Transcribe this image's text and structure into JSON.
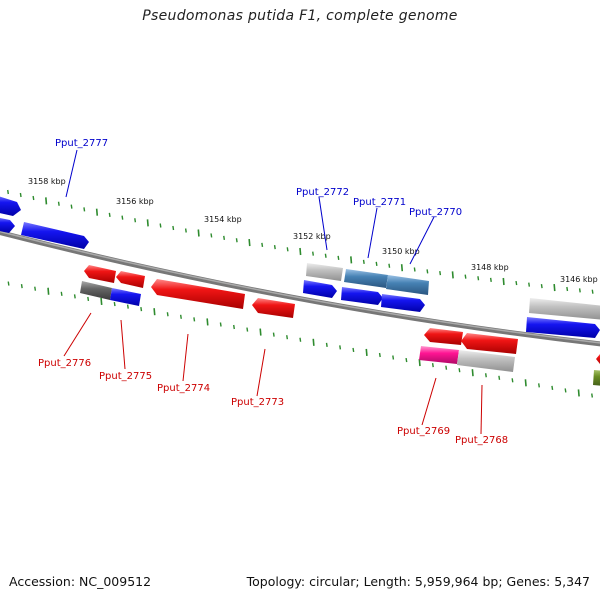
{
  "title": "Pseudomonas putida F1, complete genome",
  "footer": {
    "accession": "Accession: NC_009512",
    "summary": "Topology: circular; Length: 5,959,964 bp; Genes: 5,347"
  },
  "colors": {
    "backbone": "#888888",
    "tick": "#2e8b2e",
    "label_forward": "#0000cc",
    "label_reverse": "#cc0000",
    "blue": "#1010e6",
    "red": "#ee1111",
    "steel": "#4682b4",
    "gray": "#bbbbbb",
    "dark": "#666666",
    "pink": "#ff1493",
    "olive": "#6b8e23"
  },
  "ticks": [
    {
      "label": "3158 kbp"
    },
    {
      "label": "3156 kbp"
    },
    {
      "label": "3154 kbp"
    },
    {
      "label": "3152 kbp"
    },
    {
      "label": "3150 kbp"
    },
    {
      "label": "3148 kbp"
    },
    {
      "label": "3146 kbp"
    }
  ],
  "genes": [
    {
      "label": "Pput_2777",
      "strand": "forward"
    },
    {
      "label": "Pput_2772",
      "strand": "forward"
    },
    {
      "label": "Pput_2771",
      "strand": "forward"
    },
    {
      "label": "Pput_2770",
      "strand": "forward"
    },
    {
      "label": "Pput_2776",
      "strand": "reverse"
    },
    {
      "label": "Pput_2775",
      "strand": "reverse"
    },
    {
      "label": "Pput_2774",
      "strand": "reverse"
    },
    {
      "label": "Pput_2773",
      "strand": "reverse"
    },
    {
      "label": "Pput_2769",
      "strand": "reverse"
    },
    {
      "label": "Pput_2768",
      "strand": "reverse"
    }
  ]
}
